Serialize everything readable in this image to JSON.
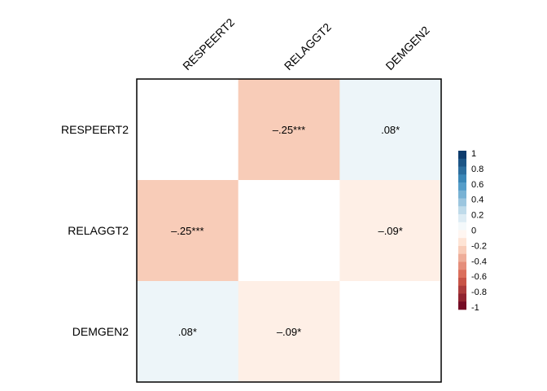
{
  "chart_data": {
    "type": "heatmap",
    "variables": [
      "RESPEERT2",
      "RELAGGT2",
      "DEMGEN2"
    ],
    "matrix": [
      [
        null,
        -0.25,
        0.08
      ],
      [
        -0.25,
        null,
        -0.09
      ],
      [
        0.08,
        -0.09,
        null
      ]
    ],
    "cell_labels": [
      [
        "",
        "–.25***",
        ".08*"
      ],
      [
        "–.25***",
        "",
        "–.09*"
      ],
      [
        ".08*",
        "–.09*",
        ""
      ]
    ],
    "legend": {
      "min": -1,
      "max": 1,
      "ticks": [
        "1",
        "0.8",
        "0.6",
        "0.4",
        "0.2",
        "0",
        "-0.2",
        "-0.4",
        "-0.6",
        "-0.8",
        "-1"
      ]
    },
    "colors": {
      "positive_strong": "#053061",
      "positive_mid": "#4393c3",
      "positive_light": "#d1e5f0",
      "neutral": "#ffffff",
      "negative_light": "#fddbc7",
      "negative_mid": "#d6604d",
      "negative_strong": "#67001f"
    }
  }
}
